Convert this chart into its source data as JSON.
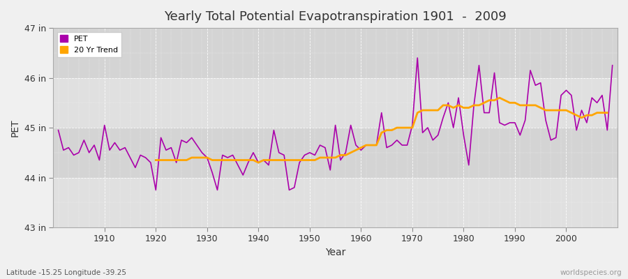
{
  "title": "Yearly Total Potential Evapotranspiration 1901  -  2009",
  "xlabel": "Year",
  "ylabel": "PET",
  "subtitle": "Latitude -15.25 Longitude -39.25",
  "watermark": "worldspecies.org",
  "pet_color": "#aa00aa",
  "trend_color": "#FFA500",
  "background_color": "#f0f0f0",
  "plot_bg_color": "#e0e0e0",
  "band_color1": "#e0e0e0",
  "band_color2": "#d4d4d4",
  "ylim": [
    43,
    47
  ],
  "yticks": [
    43,
    44,
    45,
    46,
    47
  ],
  "ytick_labels": [
    "43 in",
    "44 in",
    "45 in",
    "46 in",
    "47 in"
  ],
  "xlim_min": 1900,
  "xlim_max": 2010,
  "years": [
    1901,
    1902,
    1903,
    1904,
    1905,
    1906,
    1907,
    1908,
    1909,
    1910,
    1911,
    1912,
    1913,
    1914,
    1915,
    1916,
    1917,
    1918,
    1919,
    1920,
    1921,
    1922,
    1923,
    1924,
    1925,
    1926,
    1927,
    1928,
    1929,
    1930,
    1931,
    1932,
    1933,
    1934,
    1935,
    1936,
    1937,
    1938,
    1939,
    1940,
    1941,
    1942,
    1943,
    1944,
    1945,
    1946,
    1947,
    1948,
    1949,
    1950,
    1951,
    1952,
    1953,
    1954,
    1955,
    1956,
    1957,
    1958,
    1959,
    1960,
    1961,
    1962,
    1963,
    1964,
    1965,
    1966,
    1967,
    1968,
    1969,
    1970,
    1971,
    1972,
    1973,
    1974,
    1975,
    1976,
    1977,
    1978,
    1979,
    1980,
    1981,
    1982,
    1983,
    1984,
    1985,
    1986,
    1987,
    1988,
    1989,
    1990,
    1991,
    1992,
    1993,
    1994,
    1995,
    1996,
    1997,
    1998,
    1999,
    2000,
    2001,
    2002,
    2003,
    2004,
    2005,
    2006,
    2007,
    2008,
    2009
  ],
  "pet_values": [
    44.95,
    44.55,
    44.6,
    44.45,
    44.5,
    44.75,
    44.5,
    44.65,
    44.35,
    45.05,
    44.55,
    44.7,
    44.55,
    44.6,
    44.4,
    44.2,
    44.45,
    44.4,
    44.3,
    43.75,
    44.8,
    44.55,
    44.6,
    44.3,
    44.75,
    44.7,
    44.8,
    44.65,
    44.5,
    44.4,
    44.1,
    43.75,
    44.45,
    44.4,
    44.45,
    44.25,
    44.05,
    44.3,
    44.5,
    44.3,
    44.35,
    44.25,
    44.95,
    44.5,
    44.45,
    43.75,
    43.8,
    44.3,
    44.45,
    44.5,
    44.45,
    44.65,
    44.6,
    44.15,
    45.05,
    44.35,
    44.5,
    45.05,
    44.65,
    44.55,
    44.65,
    44.65,
    44.65,
    45.3,
    44.6,
    44.65,
    44.75,
    44.65,
    44.65,
    45.05,
    46.4,
    44.9,
    45.0,
    44.75,
    44.85,
    45.2,
    45.5,
    45.0,
    45.6,
    44.85,
    44.25,
    45.45,
    46.25,
    45.3,
    45.3,
    46.1,
    45.1,
    45.05,
    45.1,
    45.1,
    44.85,
    45.15,
    46.15,
    45.85,
    45.9,
    45.15,
    44.75,
    44.8,
    45.65,
    45.75,
    45.65,
    44.95,
    45.35,
    45.1,
    45.6,
    45.5,
    45.65,
    44.95,
    46.25
  ],
  "trend_values": [
    null,
    null,
    null,
    null,
    null,
    null,
    null,
    null,
    null,
    null,
    null,
    null,
    null,
    null,
    null,
    null,
    null,
    null,
    null,
    44.35,
    44.35,
    44.35,
    44.35,
    44.35,
    44.35,
    44.35,
    44.4,
    44.4,
    44.4,
    44.4,
    44.35,
    44.35,
    44.35,
    44.35,
    44.35,
    44.35,
    44.35,
    44.35,
    44.35,
    44.3,
    44.35,
    44.35,
    44.35,
    44.35,
    44.35,
    44.35,
    44.35,
    44.35,
    44.35,
    44.35,
    44.35,
    44.4,
    44.4,
    44.4,
    44.4,
    44.45,
    44.45,
    44.5,
    44.55,
    44.6,
    44.65,
    44.65,
    44.65,
    44.9,
    44.95,
    44.95,
    45.0,
    45.0,
    45.0,
    45.0,
    45.3,
    45.35,
    45.35,
    45.35,
    45.35,
    45.45,
    45.45,
    45.4,
    45.45,
    45.4,
    45.4,
    45.45,
    45.45,
    45.5,
    45.55,
    45.55,
    45.6,
    45.55,
    45.5,
    45.5,
    45.45,
    45.45,
    45.45,
    45.45,
    45.4,
    45.35,
    45.35,
    45.35,
    45.35,
    45.35,
    45.3,
    45.25,
    45.2,
    45.25,
    45.25,
    45.3,
    45.3,
    45.3
  ]
}
